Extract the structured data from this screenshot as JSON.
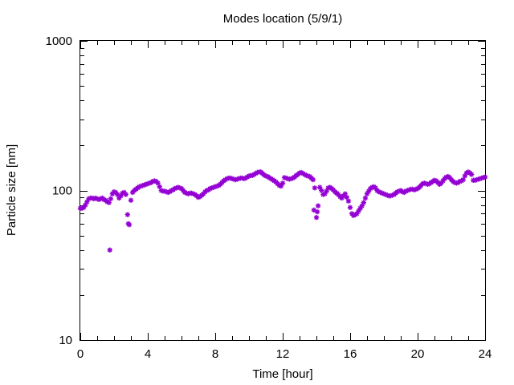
{
  "chart_data": {
    "type": "scatter",
    "title": "Modes location (5/9/1)",
    "xlabel": "Time [hour]",
    "ylabel": "Particle size [nm]",
    "xlim": [
      0,
      24
    ],
    "ylim": [
      10,
      1000
    ],
    "yscale": "log",
    "x_ticks": [
      0,
      4,
      8,
      12,
      16,
      20,
      24
    ],
    "x_tick_labels": [
      "0",
      "4",
      "8",
      "12",
      "16",
      "20",
      "24"
    ],
    "x_minor_step": 1,
    "y_ticks": [
      10,
      100,
      1000
    ],
    "y_tick_labels": [
      "10",
      "100",
      "1000"
    ],
    "grid": false,
    "marker": "star",
    "color": "#9400d3",
    "series": [
      {
        "points": [
          [
            0.0,
            76
          ],
          [
            0.1,
            76
          ],
          [
            0.2,
            77
          ],
          [
            0.3,
            80
          ],
          [
            0.4,
            84
          ],
          [
            0.5,
            88
          ],
          [
            0.6,
            89
          ],
          [
            0.7,
            89
          ],
          [
            0.8,
            88
          ],
          [
            0.9,
            89
          ],
          [
            1.0,
            88
          ],
          [
            1.1,
            87
          ],
          [
            1.2,
            88
          ],
          [
            1.3,
            89
          ],
          [
            1.4,
            87
          ],
          [
            1.5,
            86
          ],
          [
            1.6,
            84
          ],
          [
            1.7,
            83
          ],
          [
            1.75,
            40
          ],
          [
            1.8,
            88
          ],
          [
            1.9,
            95
          ],
          [
            2.0,
            98
          ],
          [
            2.1,
            97
          ],
          [
            2.2,
            94
          ],
          [
            2.3,
            89
          ],
          [
            2.4,
            92
          ],
          [
            2.5,
            96
          ],
          [
            2.6,
            97
          ],
          [
            2.7,
            94
          ],
          [
            2.8,
            69
          ],
          [
            2.85,
            60
          ],
          [
            2.9,
            59
          ],
          [
            3.0,
            86
          ],
          [
            3.1,
            97
          ],
          [
            3.2,
            100
          ],
          [
            3.3,
            102
          ],
          [
            3.4,
            104
          ],
          [
            3.5,
            106
          ],
          [
            3.6,
            107
          ],
          [
            3.7,
            108
          ],
          [
            3.8,
            109
          ],
          [
            3.9,
            110
          ],
          [
            4.0,
            111
          ],
          [
            4.1,
            112
          ],
          [
            4.2,
            113
          ],
          [
            4.3,
            115
          ],
          [
            4.4,
            116
          ],
          [
            4.5,
            115
          ],
          [
            4.6,
            112
          ],
          [
            4.7,
            106
          ],
          [
            4.8,
            100
          ],
          [
            4.9,
            99
          ],
          [
            5.0,
            99
          ],
          [
            5.1,
            98
          ],
          [
            5.2,
            97
          ],
          [
            5.3,
            98
          ],
          [
            5.4,
            100
          ],
          [
            5.5,
            101
          ],
          [
            5.6,
            103
          ],
          [
            5.7,
            104
          ],
          [
            5.8,
            105
          ],
          [
            5.9,
            104
          ],
          [
            6.0,
            103
          ],
          [
            6.1,
            100
          ],
          [
            6.2,
            97
          ],
          [
            6.3,
            96
          ],
          [
            6.4,
            95
          ],
          [
            6.5,
            96
          ],
          [
            6.6,
            96
          ],
          [
            6.7,
            95
          ],
          [
            6.8,
            94
          ],
          [
            6.9,
            92
          ],
          [
            7.0,
            90
          ],
          [
            7.1,
            91
          ],
          [
            7.2,
            93
          ],
          [
            7.3,
            95
          ],
          [
            7.4,
            98
          ],
          [
            7.5,
            100
          ],
          [
            7.6,
            101
          ],
          [
            7.7,
            103
          ],
          [
            7.8,
            104
          ],
          [
            7.9,
            105
          ],
          [
            8.0,
            106
          ],
          [
            8.1,
            107
          ],
          [
            8.2,
            108
          ],
          [
            8.3,
            110
          ],
          [
            8.4,
            113
          ],
          [
            8.5,
            116
          ],
          [
            8.6,
            118
          ],
          [
            8.7,
            120
          ],
          [
            8.8,
            121
          ],
          [
            8.9,
            121
          ],
          [
            9.0,
            120
          ],
          [
            9.1,
            119
          ],
          [
            9.2,
            118
          ],
          [
            9.3,
            119
          ],
          [
            9.4,
            120
          ],
          [
            9.5,
            121
          ],
          [
            9.6,
            121
          ],
          [
            9.7,
            120
          ],
          [
            9.8,
            121
          ],
          [
            9.9,
            123
          ],
          [
            10.0,
            125
          ],
          [
            10.1,
            126
          ],
          [
            10.2,
            126
          ],
          [
            10.3,
            128
          ],
          [
            10.4,
            130
          ],
          [
            10.5,
            132
          ],
          [
            10.6,
            133
          ],
          [
            10.7,
            133
          ],
          [
            10.8,
            130
          ],
          [
            10.9,
            127
          ],
          [
            11.0,
            125
          ],
          [
            11.1,
            124
          ],
          [
            11.2,
            122
          ],
          [
            11.3,
            120
          ],
          [
            11.4,
            118
          ],
          [
            11.5,
            116
          ],
          [
            11.6,
            114
          ],
          [
            11.7,
            111
          ],
          [
            11.8,
            108
          ],
          [
            11.9,
            107
          ],
          [
            12.0,
            112
          ],
          [
            12.1,
            122
          ],
          [
            12.2,
            121
          ],
          [
            12.3,
            120
          ],
          [
            12.4,
            119
          ],
          [
            12.5,
            120
          ],
          [
            12.6,
            121
          ],
          [
            12.7,
            123
          ],
          [
            12.8,
            126
          ],
          [
            12.9,
            128
          ],
          [
            13.0,
            131
          ],
          [
            13.1,
            132
          ],
          [
            13.2,
            130
          ],
          [
            13.3,
            128
          ],
          [
            13.4,
            126
          ],
          [
            13.5,
            125
          ],
          [
            13.6,
            124
          ],
          [
            13.7,
            121
          ],
          [
            13.8,
            118
          ],
          [
            13.85,
            74
          ],
          [
            13.9,
            104
          ],
          [
            14.0,
            66
          ],
          [
            14.05,
            72
          ],
          [
            14.1,
            79
          ],
          [
            14.2,
            105
          ],
          [
            14.3,
            100
          ],
          [
            14.4,
            94
          ],
          [
            14.5,
            95
          ],
          [
            14.6,
            99
          ],
          [
            14.7,
            104
          ],
          [
            14.8,
            105
          ],
          [
            14.9,
            103
          ],
          [
            15.0,
            101
          ],
          [
            15.1,
            98
          ],
          [
            15.2,
            96
          ],
          [
            15.3,
            94
          ],
          [
            15.4,
            91
          ],
          [
            15.5,
            89
          ],
          [
            15.6,
            92
          ],
          [
            15.7,
            95
          ],
          [
            15.8,
            90
          ],
          [
            15.9,
            85
          ],
          [
            16.0,
            77
          ],
          [
            16.1,
            70
          ],
          [
            16.2,
            68
          ],
          [
            16.3,
            69
          ],
          [
            16.4,
            70
          ],
          [
            16.5,
            73
          ],
          [
            16.6,
            76
          ],
          [
            16.7,
            79
          ],
          [
            16.8,
            83
          ],
          [
            16.9,
            89
          ],
          [
            17.0,
            95
          ],
          [
            17.1,
            99
          ],
          [
            17.2,
            103
          ],
          [
            17.3,
            105
          ],
          [
            17.4,
            106
          ],
          [
            17.5,
            104
          ],
          [
            17.6,
            100
          ],
          [
            17.7,
            98
          ],
          [
            17.8,
            97
          ],
          [
            17.9,
            96
          ],
          [
            18.0,
            95
          ],
          [
            18.1,
            94
          ],
          [
            18.2,
            93
          ],
          [
            18.3,
            92
          ],
          [
            18.4,
            92
          ],
          [
            18.5,
            93
          ],
          [
            18.6,
            94
          ],
          [
            18.7,
            96
          ],
          [
            18.8,
            98
          ],
          [
            18.9,
            99
          ],
          [
            19.0,
            100
          ],
          [
            19.1,
            98
          ],
          [
            19.2,
            97
          ],
          [
            19.3,
            99
          ],
          [
            19.4,
            100
          ],
          [
            19.5,
            101
          ],
          [
            19.6,
            102
          ],
          [
            19.7,
            102
          ],
          [
            19.8,
            101
          ],
          [
            19.9,
            102
          ],
          [
            20.0,
            103
          ],
          [
            20.1,
            105
          ],
          [
            20.2,
            108
          ],
          [
            20.3,
            111
          ],
          [
            20.4,
            112
          ],
          [
            20.5,
            111
          ],
          [
            20.6,
            110
          ],
          [
            20.7,
            111
          ],
          [
            20.8,
            113
          ],
          [
            20.9,
            115
          ],
          [
            21.0,
            117
          ],
          [
            21.1,
            116
          ],
          [
            21.2,
            113
          ],
          [
            21.3,
            110
          ],
          [
            21.4,
            112
          ],
          [
            21.5,
            116
          ],
          [
            21.6,
            120
          ],
          [
            21.7,
            123
          ],
          [
            21.8,
            124
          ],
          [
            21.9,
            122
          ],
          [
            22.0,
            118
          ],
          [
            22.1,
            115
          ],
          [
            22.2,
            113
          ],
          [
            22.3,
            112
          ],
          [
            22.4,
            113
          ],
          [
            22.5,
            115
          ],
          [
            22.6,
            116
          ],
          [
            22.7,
            118
          ],
          [
            22.8,
            125
          ],
          [
            22.9,
            131
          ],
          [
            23.0,
            133
          ],
          [
            23.1,
            131
          ],
          [
            23.2,
            128
          ],
          [
            23.3,
            117
          ],
          [
            23.4,
            117
          ],
          [
            23.5,
            118
          ],
          [
            23.6,
            119
          ],
          [
            23.7,
            120
          ],
          [
            23.8,
            121
          ],
          [
            23.9,
            122
          ],
          [
            24.0,
            123
          ]
        ]
      }
    ]
  }
}
